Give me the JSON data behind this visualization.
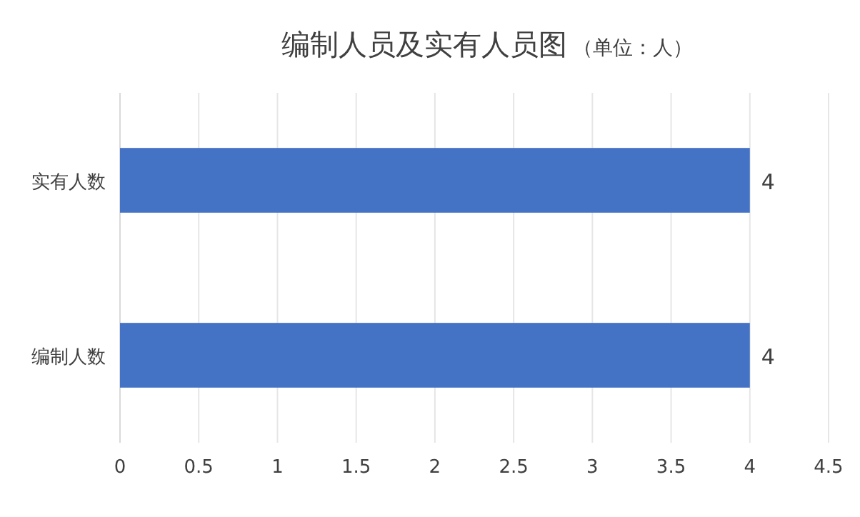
{
  "chart_data": {
    "type": "bar",
    "orientation": "horizontal",
    "title": "编制人员及实有人员图",
    "subtitle": "（单位：人）",
    "categories": [
      "实有人数",
      "编制人数"
    ],
    "values": [
      4,
      4
    ],
    "color": "#4472c4",
    "xlim": [
      0,
      4.5
    ],
    "xticks": [
      0,
      0.5,
      1,
      1.5,
      2,
      2.5,
      3,
      3.5,
      4,
      4.5
    ],
    "grid": "x",
    "data_labels": true
  }
}
